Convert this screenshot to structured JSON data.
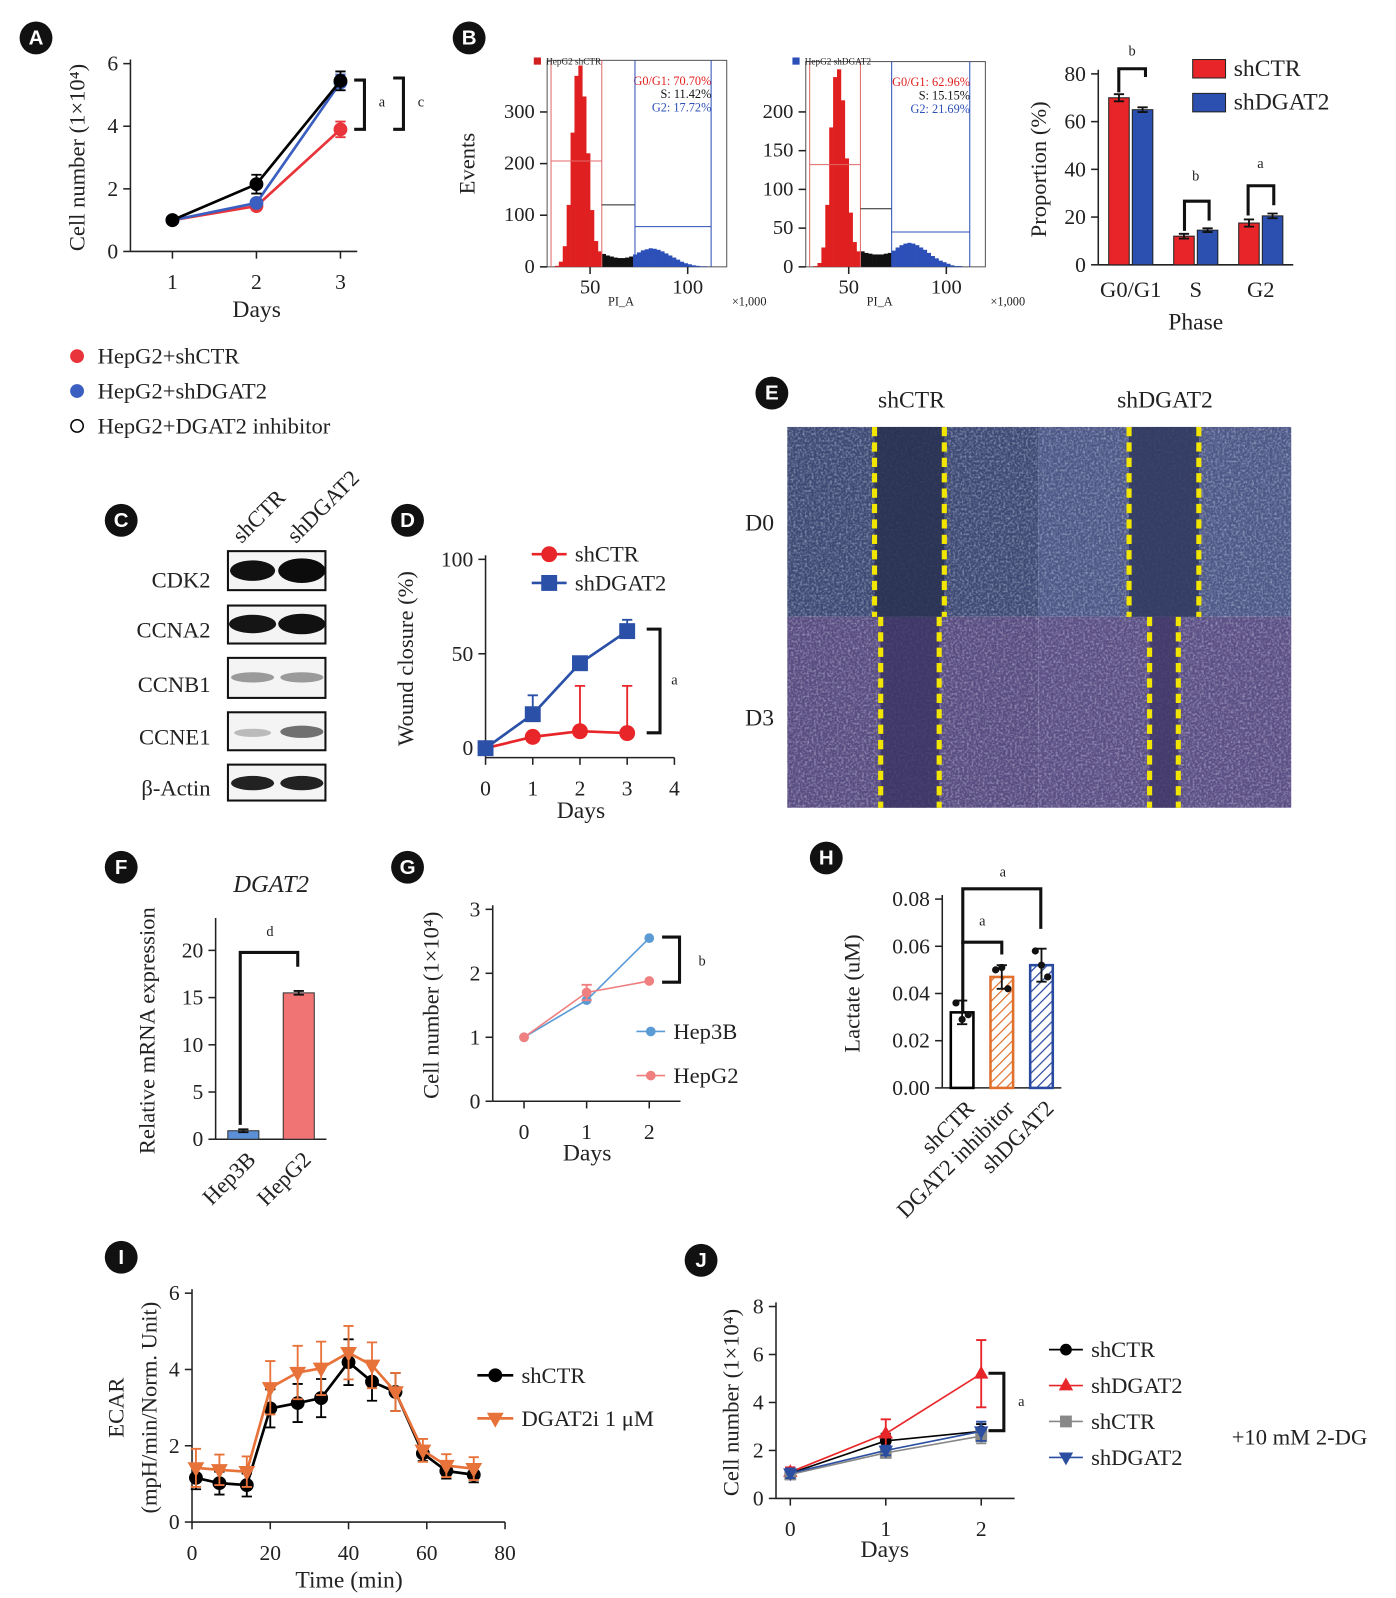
{
  "panel_labels": [
    "A",
    "B",
    "C",
    "D",
    "E",
    "F",
    "G",
    "H",
    "I",
    "J"
  ],
  "blot": {
    "columns": [
      "shCTR",
      "shDGAT2"
    ],
    "rows": [
      "CDK2",
      "CCNA2",
      "CCNB1",
      "CCNE1",
      "β-Actin"
    ]
  },
  "wound": {
    "columns": [
      "shCTR",
      "shDGAT2"
    ],
    "rows": [
      "D0",
      "D3"
    ]
  },
  "chart_data": [
    {
      "type": "line",
      "ylabel": "Cell number (1×10⁴)",
      "xlabel": "Days",
      "legend": "below",
      "x": [
        1,
        2,
        3
      ],
      "xlim": [
        0.5,
        3.2
      ],
      "xticks": [
        1,
        2,
        3
      ],
      "ylim": [
        0,
        6
      ],
      "yticks": [
        0,
        2,
        4,
        6
      ],
      "series": [
        {
          "name": "HepG2+shCTR",
          "color": "#e8343a",
          "marker": "circle",
          "values": [
            1,
            1.45,
            3.9
          ],
          "errors": [
            0.05,
            0.1,
            0.25
          ]
        },
        {
          "name": "HepG2+shDGAT2",
          "color": "#3a5fc0",
          "marker": "circle",
          "values": [
            1,
            1.55,
            5.4
          ],
          "errors": [
            0.05,
            0.1,
            0.25
          ]
        },
        {
          "name": "HepG2+DGAT2 inhibitor",
          "color": "#000000",
          "marker": "circle",
          "legend_marker_fill": "#ffffff",
          "values": [
            1,
            2.15,
            5.45
          ],
          "errors": [
            0.05,
            0.3,
            0.3
          ]
        }
      ],
      "annotations": [
        "a",
        "c"
      ]
    },
    {
      "type": "histogram",
      "title": "HepG2 shCTR",
      "title_color": "#d02020",
      "ylabel": "Events",
      "xlabel": "PI_A",
      "x_unit": "×1,000",
      "bins": [
        30,
        32,
        34,
        36,
        38,
        40,
        42,
        44,
        46,
        48,
        50,
        52,
        54,
        56,
        58,
        60,
        62,
        64,
        66,
        68,
        70,
        72,
        74,
        76,
        78,
        80,
        82,
        84,
        86,
        88,
        90,
        92,
        94,
        96,
        98,
        100,
        102,
        104,
        106,
        108,
        110,
        112
      ],
      "counts": [
        0,
        2,
        10,
        40,
        120,
        260,
        370,
        390,
        330,
        220,
        110,
        50,
        30,
        25,
        22,
        20,
        18,
        17,
        17,
        18,
        20,
        24,
        28,
        32,
        34,
        36,
        35,
        33,
        30,
        26,
        22,
        18,
        14,
        10,
        7,
        5,
        3,
        2,
        1,
        1,
        0
      ],
      "xlim": [
        28,
        120
      ],
      "xticks": [
        50,
        100
      ],
      "ylim": [
        0,
        400
      ],
      "yticks": [
        0,
        100,
        200,
        300
      ],
      "gates": [
        {
          "label": "G0/G1: 70.70%",
          "color": "#e02020",
          "range": [
            30,
            56
          ],
          "level": 205
        },
        {
          "label": "S: 11.42%",
          "color": "#111111",
          "range": [
            56,
            73
          ],
          "level": 120
        },
        {
          "label": "G2: 17.72%",
          "color": "#2c4fb8",
          "range": [
            73,
            112
          ],
          "level": 78
        }
      ]
    },
    {
      "type": "histogram",
      "title": "HepG2 shDGAT2",
      "title_color": "#2c4fb8",
      "xlabel": "PI_A",
      "x_unit": "×1,000",
      "bins": [
        30,
        32,
        34,
        36,
        38,
        40,
        42,
        44,
        46,
        48,
        50,
        52,
        54,
        56,
        58,
        60,
        62,
        64,
        66,
        68,
        70,
        72,
        74,
        76,
        78,
        80,
        82,
        84,
        86,
        88,
        90,
        92,
        94,
        96,
        98,
        100,
        102,
        104,
        106,
        108,
        110,
        112
      ],
      "counts": [
        0,
        1,
        5,
        25,
        80,
        180,
        245,
        255,
        215,
        140,
        70,
        32,
        20,
        20,
        18,
        17,
        16,
        16,
        16,
        17,
        18,
        21,
        25,
        28,
        30,
        31,
        30,
        28,
        25,
        22,
        18,
        14,
        11,
        8,
        6,
        4,
        2,
        1,
        1,
        0,
        0
      ],
      "xlim": [
        28,
        120
      ],
      "xticks": [
        50,
        100
      ],
      "ylim": [
        0,
        265
      ],
      "yticks": [
        0,
        50,
        100,
        150,
        200
      ],
      "gates": [
        {
          "label": "G0/G1: 62.96%",
          "color": "#e02020",
          "range": [
            30,
            56
          ],
          "level": 132
        },
        {
          "label": "S: 15.15%",
          "color": "#111111",
          "range": [
            56,
            72
          ],
          "level": 75
        },
        {
          "label": "G2: 21.69%",
          "color": "#2c4fb8",
          "range": [
            72,
            112
          ],
          "level": 45
        }
      ]
    },
    {
      "type": "groupedbar",
      "ylabel": "Proportion (%)",
      "xlabel": "Phase",
      "legend": "upper right",
      "categories": [
        "G0/G1",
        "S",
        "G2"
      ],
      "ylim": [
        0,
        80
      ],
      "yticks": [
        0,
        20,
        40,
        60,
        80
      ],
      "series": [
        {
          "name": "shCTR",
          "color": "#e8262a",
          "values": [
            70,
            12,
            17.5
          ],
          "errors": [
            1.5,
            1,
            1.5
          ]
        },
        {
          "name": "shDGAT2",
          "color": "#2b50b0",
          "values": [
            65,
            14.5,
            20.5
          ],
          "errors": [
            1,
            0.8,
            1
          ]
        }
      ],
      "annotations": [
        "b",
        "b",
        "a"
      ]
    },
    {
      "type": "line",
      "ylabel": "Wound closure (%)",
      "xlabel": "Days",
      "legend": "upper left",
      "error_bars": "upper",
      "x": [
        0,
        1,
        2,
        3
      ],
      "xlim": [
        0,
        4
      ],
      "xticks": [
        0,
        1,
        2,
        3,
        4
      ],
      "ylim": [
        -5,
        100
      ],
      "yticks": [
        0,
        50,
        100
      ],
      "series": [
        {
          "name": "shCTR",
          "color": "#e8262a",
          "marker": "circle",
          "values": [
            0,
            6,
            9,
            8
          ],
          "errors": [
            0,
            0,
            24,
            25
          ]
        },
        {
          "name": "shDGAT2",
          "color": "#2b50a8",
          "marker": "square",
          "values": [
            0,
            18,
            45,
            62
          ],
          "errors": [
            0,
            10,
            3,
            6
          ]
        }
      ],
      "annotations": [
        "a"
      ]
    },
    {
      "type": "bar",
      "title": "DGAT2",
      "ylabel": "Relative mRNA expression",
      "categories": [
        "Hep3B",
        "HepG2"
      ],
      "values": [
        0.9,
        15.5
      ],
      "errors": [
        0.15,
        0.2
      ],
      "colors": [
        "#5b8fd6",
        "#f07474"
      ],
      "ylim": [
        0,
        23
      ],
      "yticks": [
        0,
        5,
        10,
        15,
        20
      ],
      "annotations": [
        "d"
      ]
    },
    {
      "type": "line",
      "ylabel": "Cell number (1×10⁴)",
      "xlabel": "Days",
      "legend": "lower right",
      "x": [
        0,
        1,
        2
      ],
      "xlim": [
        -0.5,
        2.5
      ],
      "xticks": [
        0,
        1,
        2
      ],
      "ylim": [
        0,
        3
      ],
      "yticks": [
        0,
        1,
        2,
        3
      ],
      "series": [
        {
          "name": "Hep3B",
          "color": "#5b9bd5",
          "marker": "circle",
          "values": [
            1,
            1.58,
            2.55
          ]
        },
        {
          "name": "HepG2",
          "color": "#f08080",
          "marker": "circle",
          "values": [
            1,
            1.7,
            1.88
          ],
          "errors": [
            0,
            0.12,
            0
          ]
        }
      ],
      "annotations": [
        "b"
      ]
    },
    {
      "type": "bar",
      "ylabel": "Lactate (uM)",
      "categories": [
        "shCTR",
        "DGAT2 inhibitor",
        "shDGAT2"
      ],
      "values": [
        0.032,
        0.047,
        0.052
      ],
      "errors": [
        0.005,
        0.005,
        0.007
      ],
      "points": [
        [
          0.036,
          0.029,
          0.031
        ],
        [
          0.05,
          0.051,
          0.042
        ],
        [
          0.058,
          0.052,
          0.047
        ]
      ],
      "colors": [
        "#000000",
        "#e0702c",
        "#2a4aa0"
      ],
      "hatch": [
        false,
        true,
        true
      ],
      "ylim": [
        0,
        0.08
      ],
      "yticks": [
        {
          "value": 0,
          "label": "0.00"
        },
        0.02,
        0.04,
        0.06,
        0.08
      ],
      "annotations": [
        "a",
        "a"
      ]
    },
    {
      "type": "line",
      "ylabel": [
        "ECAR",
        "(mpH/min/Norm. Unit)"
      ],
      "xlabel": "Time (min)",
      "legend": "right",
      "x": [
        1,
        7,
        14,
        20,
        27,
        33,
        40,
        46,
        52,
        59,
        65,
        72
      ],
      "xlim": [
        0,
        80
      ],
      "xticks": [
        0,
        20,
        40,
        60,
        80
      ],
      "ylim": [
        0,
        6
      ],
      "yticks": [
        0,
        2,
        4,
        6
      ],
      "series": [
        {
          "name": "shCTR",
          "color": "#000000",
          "marker": "circle",
          "values": [
            1.16,
            1.02,
            0.97,
            2.98,
            3.12,
            3.25,
            4.19,
            3.68,
            3.41,
            1.8,
            1.34,
            1.24
          ],
          "errors": [
            0.3,
            0.3,
            0.3,
            0.5,
            0.5,
            0.5,
            0.6,
            0.5,
            0.5,
            0.2,
            0.2,
            0.2
          ]
        },
        {
          "name": "DGAT2i 1 μM",
          "color": "#e8733a",
          "marker": "triangle-down",
          "values": [
            1.42,
            1.37,
            1.32,
            3.52,
            3.92,
            4.03,
            4.44,
            4.11,
            3.41,
            1.88,
            1.48,
            1.4
          ],
          "errors": [
            0.5,
            0.4,
            0.4,
            0.7,
            0.7,
            0.7,
            0.7,
            0.6,
            0.5,
            0.3,
            0.3,
            0.3
          ]
        }
      ]
    },
    {
      "type": "line",
      "ylabel": "Cell number (1×10⁴)",
      "xlabel": "Days",
      "legend": "right",
      "note": "+10 mM 2-DG",
      "x": [
        0,
        1,
        2
      ],
      "xlim": [
        -0.15,
        2.35
      ],
      "xticks": [
        0,
        1,
        2
      ],
      "ylim": [
        0,
        8
      ],
      "yticks": [
        0,
        2,
        4,
        6,
        8
      ],
      "series": [
        {
          "name": "shCTR",
          "color": "#000000",
          "marker": "circle",
          "values": [
            1.05,
            2.4,
            2.8
          ],
          "errors": [
            0.2,
            0.3,
            0.3
          ]
        },
        {
          "name": "shDGAT2",
          "color": "#e8262a",
          "marker": "triangle-up",
          "values": [
            1.1,
            2.7,
            5.2
          ],
          "errors": [
            0.2,
            0.6,
            1.4
          ]
        },
        {
          "name": "shCTR",
          "color": "#888888",
          "marker": "square",
          "values": [
            1,
            1.9,
            2.6
          ],
          "errors": [
            0.2,
            0.2,
            0.3
          ]
        },
        {
          "name": "shDGAT2",
          "color": "#2b4ea0",
          "marker": "triangle-down",
          "values": [
            1.05,
            2.0,
            2.8
          ],
          "errors": [
            0.2,
            0.2,
            0.4
          ]
        }
      ],
      "annotations": [
        "a"
      ]
    }
  ]
}
